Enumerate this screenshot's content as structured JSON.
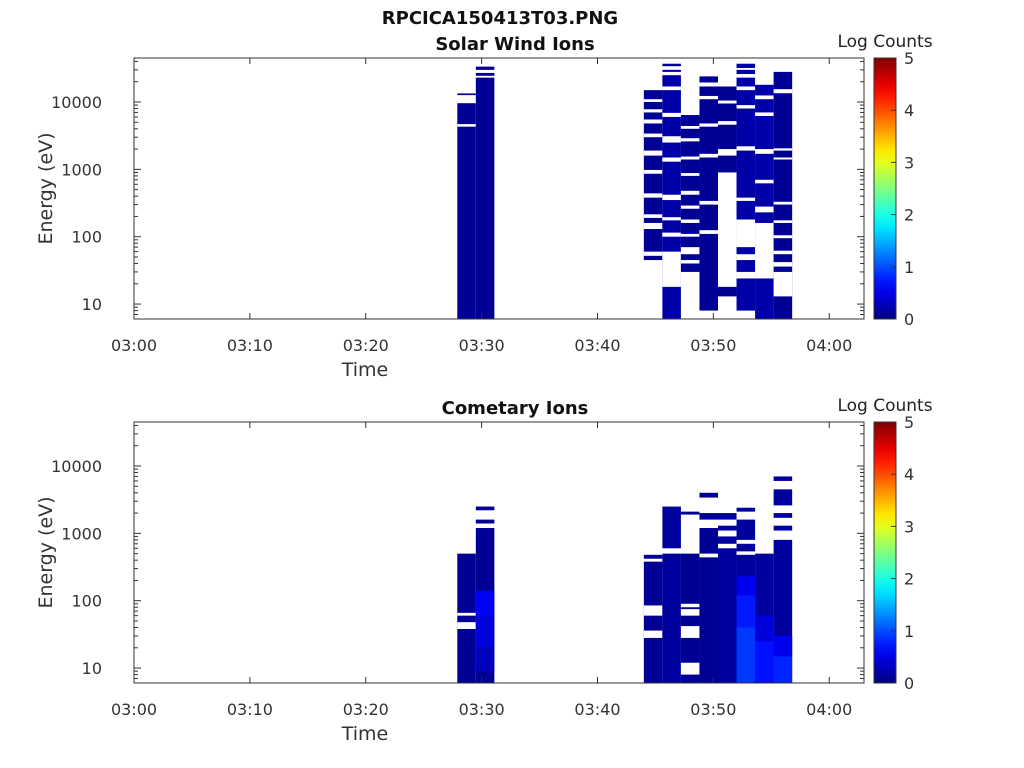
{
  "figure_title": "RPCICA150413T03.PNG",
  "colorbar": {
    "label": "Log Counts",
    "ticks": [
      "0",
      "1",
      "2",
      "3",
      "4",
      "5"
    ],
    "range": [
      0,
      5
    ]
  },
  "chart_data": [
    {
      "type": "heatmap",
      "title": "Solar Wind Ions",
      "xlabel": "Time",
      "ylabel": "Energy (eV)",
      "x_ticks": [
        "03:00",
        "03:10",
        "03:20",
        "03:30",
        "03:40",
        "03:50",
        "04:00"
      ],
      "y_ticks": [
        "10",
        "100",
        "1000",
        "10000"
      ],
      "xlim": [
        "03:00",
        "04:03"
      ],
      "ylim": [
        6,
        45000
      ],
      "y_scale": "log",
      "value_label": "Log Counts",
      "columns": [
        {
          "t0": "03:27:54",
          "t1": "03:29:30",
          "emin": 6,
          "emax": 9600,
          "gaps": [
            [
              4300,
              4700
            ],
            [
              11500,
              12600
            ]
          ],
          "top_bands": [
            [
              12600,
              13400
            ]
          ],
          "value": 0.1
        },
        {
          "t0": "03:29:30",
          "t1": "03:31:06",
          "emin": 6,
          "emax": 23000,
          "gaps": [],
          "top_bands": [
            [
              24500,
              27000
            ],
            [
              30000,
              33500
            ]
          ],
          "value": 0.1
        },
        {
          "t0": "03:44:00",
          "t1": "03:45:36",
          "emin": 45,
          "emax": 15000,
          "gaps": [
            [
              52,
              60
            ],
            [
              130,
              160
            ],
            [
              190,
              215
            ],
            [
              380,
              440
            ],
            [
              860,
              980
            ],
            [
              1600,
              1900
            ],
            [
              3000,
              3400
            ],
            [
              4800,
              5500
            ],
            [
              7000,
              7800
            ],
            [
              10000,
              11000
            ]
          ],
          "top_bands": [],
          "value": 0.1
        },
        {
          "t0": "03:45:36",
          "t1": "03:47:12",
          "emin": 6,
          "emax": 25000,
          "gaps": [
            [
              18,
              60
            ],
            [
              100,
              115
            ],
            [
              175,
              195
            ],
            [
              350,
              420
            ],
            [
              1300,
              1500
            ],
            [
              2500,
              3100
            ],
            [
              6000,
              6900
            ],
            [
              15000,
              17000
            ]
          ],
          "top_bands": [
            [
              28000,
              30000
            ],
            [
              34000,
              37000
            ]
          ],
          "value": 0.2
        },
        {
          "t0": "03:47:12",
          "t1": "03:48:48",
          "emin": 30,
          "emax": 6400,
          "gaps": [
            [
              40,
              45
            ],
            [
              55,
              70
            ],
            [
              100,
              110
            ],
            [
              160,
              180
            ],
            [
              260,
              290
            ],
            [
              420,
              480
            ],
            [
              800,
              880
            ],
            [
              1400,
              1550
            ],
            [
              2600,
              2900
            ],
            [
              4000,
              4400
            ]
          ],
          "top_bands": [],
          "value": 0.1
        },
        {
          "t0": "03:48:48",
          "t1": "03:50:24",
          "emin": 8,
          "emax": 24000,
          "gaps": [
            [
              110,
              125
            ],
            [
              300,
              340
            ],
            [
              1500,
              1700
            ],
            [
              4300,
              4800
            ],
            [
              11000,
              12300
            ],
            [
              17000,
              19500
            ]
          ],
          "top_bands": [],
          "value": 0.1
        },
        {
          "t0": "03:50:24",
          "t1": "03:52:00",
          "emin": 13,
          "emax": 17000,
          "gaps": [
            [
              18,
              900
            ],
            [
              1600,
              2000
            ],
            [
              4600,
              5200
            ],
            [
              9500,
              10500
            ]
          ],
          "top_bands": [],
          "value": 0.1
        },
        {
          "t0": "03:52:00",
          "t1": "03:53:36",
          "emin": 8,
          "emax": 37000,
          "gaps": [
            [
              24,
              30
            ],
            [
              45,
              55
            ],
            [
              70,
              180
            ],
            [
              340,
              380
            ],
            [
              1900,
              2200
            ],
            [
              8000,
              9000
            ],
            [
              15000,
              17000
            ],
            [
              23000,
              26000
            ],
            [
              30000,
              32000
            ]
          ],
          "top_bands": [],
          "value": 0.2
        },
        {
          "t0": "03:53:36",
          "t1": "03:55:12",
          "emin": 6,
          "emax": 18000,
          "gaps": [
            [
              24,
              160
            ],
            [
              230,
              280
            ],
            [
              620,
              700
            ],
            [
              1700,
              2000
            ],
            [
              6200,
              7000
            ],
            [
              11000,
              12500
            ]
          ],
          "top_bands": [],
          "value": 0.2
        },
        {
          "t0": "03:55:12",
          "t1": "03:56:48",
          "emin": 6,
          "emax": 28000,
          "gaps": [
            [
              13,
              30
            ],
            [
              36,
              42
            ],
            [
              55,
              62
            ],
            [
              95,
              105
            ],
            [
              160,
              175
            ],
            [
              300,
              330
            ],
            [
              1400,
              1500
            ],
            [
              1900,
              2050
            ],
            [
              13500,
              15500
            ]
          ],
          "top_bands": [],
          "value": 0.1
        }
      ]
    },
    {
      "type": "heatmap",
      "title": "Cometary Ions",
      "xlabel": "Time",
      "ylabel": "Energy (eV)",
      "x_ticks": [
        "03:00",
        "03:10",
        "03:20",
        "03:30",
        "03:40",
        "03:50",
        "04:00"
      ],
      "y_ticks": [
        "10",
        "100",
        "1000",
        "10000"
      ],
      "xlim": [
        "03:00",
        "04:03"
      ],
      "ylim": [
        6,
        45000
      ],
      "y_scale": "log",
      "value_label": "Log Counts",
      "columns": [
        {
          "t0": "03:27:54",
          "t1": "03:29:30",
          "emin": 6,
          "emax": 500,
          "gaps": [
            [
              38,
              48
            ],
            [
              60,
              66
            ]
          ],
          "top_bands": [],
          "value": 0.1
        },
        {
          "t0": "03:29:30",
          "t1": "03:31:06",
          "emin": 6,
          "emax": 1200,
          "gaps": [],
          "top_bands": [
            [
              1400,
              1600
            ],
            [
              2200,
              2500
            ]
          ],
          "value": 0.1,
          "cells": [
            {
              "emin": 60,
              "emax": 140,
              "value": 0.6
            },
            {
              "emin": 20,
              "emax": 60,
              "value": 0.45
            },
            {
              "emin": 9,
              "emax": 20,
              "value": 0.3
            }
          ]
        },
        {
          "t0": "03:44:00",
          "t1": "03:45:36",
          "emin": 6,
          "emax": 380,
          "gaps": [
            [
              60,
              85
            ],
            [
              28,
              36
            ]
          ],
          "top_bands": [
            [
              420,
              480
            ]
          ],
          "value": 0.1
        },
        {
          "t0": "03:45:36",
          "t1": "03:47:12",
          "emin": 6,
          "emax": 500,
          "gaps": [],
          "top_bands": [
            [
              600,
              2500
            ]
          ],
          "value": 0.15
        },
        {
          "t0": "03:47:12",
          "t1": "03:48:48",
          "emin": 6,
          "emax": 500,
          "gaps": [
            [
              8,
              12
            ],
            [
              28,
              42
            ],
            [
              60,
              75
            ],
            [
              80,
              90
            ]
          ],
          "top_bands": [
            [
              1900,
              2100
            ]
          ],
          "value": 0.1
        },
        {
          "t0": "03:48:48",
          "t1": "03:50:24",
          "emin": 6,
          "emax": 440,
          "gaps": [],
          "top_bands": [
            [
              500,
              1200
            ],
            [
              1600,
              2000
            ],
            [
              3400,
              4000
            ]
          ],
          "value": 0.1
        },
        {
          "t0": "03:50:24",
          "t1": "03:52:00",
          "emin": 6,
          "emax": 600,
          "gaps": [],
          "top_bands": [
            [
              700,
              900
            ],
            [
              1100,
              1300
            ],
            [
              1600,
              2000
            ]
          ],
          "value": 0.15
        },
        {
          "t0": "03:52:00",
          "t1": "03:53:36",
          "emin": 6,
          "emax": 480,
          "gaps": [],
          "top_bands": [
            [
              540,
              700
            ],
            [
              800,
              1600
            ],
            [
              2100,
              2400
            ]
          ],
          "value": 0.15,
          "cells": [
            {
              "emin": 6,
              "emax": 40,
              "value": 0.9
            },
            {
              "emin": 40,
              "emax": 120,
              "value": 0.75
            },
            {
              "emin": 120,
              "emax": 230,
              "value": 0.55
            }
          ]
        },
        {
          "t0": "03:53:36",
          "t1": "03:55:12",
          "emin": 6,
          "emax": 500,
          "gaps": [],
          "top_bands": [],
          "value": 0.15,
          "cells": [
            {
              "emin": 6,
              "emax": 25,
              "value": 0.7
            },
            {
              "emin": 25,
              "emax": 60,
              "value": 0.45
            }
          ]
        },
        {
          "t0": "03:55:12",
          "t1": "03:56:48",
          "emin": 6,
          "emax": 800,
          "gaps": [],
          "top_bands": [
            [
              1100,
              1300
            ],
            [
              1700,
              2000
            ],
            [
              2600,
              4500
            ],
            [
              6000,
              7000
            ]
          ],
          "value": 0.15,
          "cells": [
            {
              "emin": 6,
              "emax": 15,
              "value": 0.8
            },
            {
              "emin": 15,
              "emax": 30,
              "value": 0.55
            }
          ]
        }
      ]
    }
  ]
}
